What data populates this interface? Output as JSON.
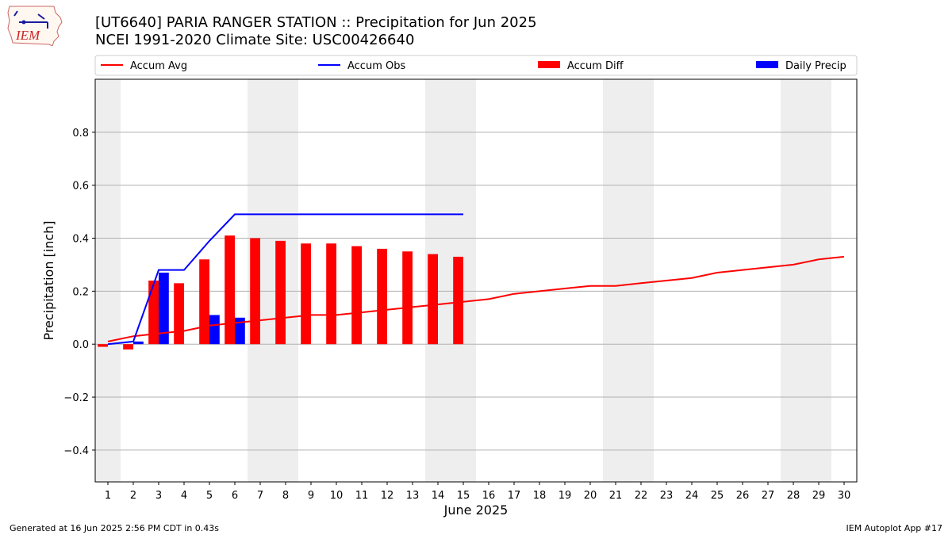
{
  "header": {
    "title_line1": "[UT6640] PARIA RANGER STATION :: Precipitation for Jun 2025",
    "title_line2": "NCEI 1991-2020 Climate Site: USC00426640",
    "logo_text": "IEM"
  },
  "footer": {
    "left": "Generated at 16 Jun 2025 2:56 PM CDT in 0.43s",
    "right": "IEM Autoplot App #17"
  },
  "colors": {
    "avg": "#ff0000",
    "obs": "#0000ff",
    "diff": "#ff0000",
    "daily": "#0000ff",
    "weekend_shade": "#eeeeee",
    "grid": "#b0b0b0"
  },
  "chart_data": {
    "type": "bar",
    "title": "[UT6640] PARIA RANGER STATION :: Precipitation for Jun 2025",
    "subtitle": "NCEI 1991-2020 Climate Site: USC00426640",
    "xlabel": "June 2025",
    "ylabel": "Precipitation [inch]",
    "ylim": [
      -0.52,
      1.0
    ],
    "xlim": [
      0.5,
      30.5
    ],
    "yticks": [
      -0.4,
      -0.2,
      0.0,
      0.2,
      0.4,
      0.6,
      0.8
    ],
    "ytick_labels": [
      "−0.4",
      "−0.2",
      "0.0",
      "0.2",
      "0.4",
      "0.6",
      "0.8"
    ],
    "days": [
      1,
      2,
      3,
      4,
      5,
      6,
      7,
      8,
      9,
      10,
      11,
      12,
      13,
      14,
      15,
      16,
      17,
      18,
      19,
      20,
      21,
      22,
      23,
      24,
      25,
      26,
      27,
      28,
      29,
      30
    ],
    "grid": true,
    "legend_position": "top",
    "weekend_shading": [
      [
        0.5,
        1.5
      ],
      [
        6.5,
        8.5
      ],
      [
        13.5,
        15.5
      ],
      [
        20.5,
        22.5
      ],
      [
        27.5,
        29.5
      ]
    ],
    "series": [
      {
        "name": "Accum Avg",
        "kind": "line",
        "color": "#ff0000",
        "x": [
          1,
          2,
          3,
          4,
          5,
          6,
          7,
          8,
          9,
          10,
          11,
          12,
          13,
          14,
          15,
          16,
          17,
          18,
          19,
          20,
          21,
          22,
          23,
          24,
          25,
          26,
          27,
          28,
          29,
          30
        ],
        "values": [
          0.01,
          0.03,
          0.04,
          0.05,
          0.07,
          0.08,
          0.09,
          0.1,
          0.11,
          0.11,
          0.12,
          0.13,
          0.14,
          0.15,
          0.16,
          0.17,
          0.19,
          0.2,
          0.21,
          0.22,
          0.22,
          0.23,
          0.24,
          0.25,
          0.27,
          0.28,
          0.29,
          0.3,
          0.32,
          0.33
        ]
      },
      {
        "name": "Accum Obs",
        "kind": "line",
        "color": "#0000ff",
        "x": [
          1,
          2,
          3,
          4,
          5,
          6,
          7,
          8,
          9,
          10,
          11,
          12,
          13,
          14,
          15
        ],
        "values": [
          0.0,
          0.01,
          0.28,
          0.28,
          0.39,
          0.49,
          0.49,
          0.49,
          0.49,
          0.49,
          0.49,
          0.49,
          0.49,
          0.49,
          0.49
        ]
      },
      {
        "name": "Accum Diff",
        "kind": "bar",
        "color": "#ff0000",
        "x": [
          1,
          2,
          3,
          4,
          5,
          6,
          7,
          8,
          9,
          10,
          11,
          12,
          13,
          14,
          15
        ],
        "values": [
          -0.01,
          -0.02,
          0.24,
          0.23,
          0.32,
          0.41,
          0.4,
          0.39,
          0.38,
          0.38,
          0.37,
          0.36,
          0.35,
          0.34,
          0.33
        ]
      },
      {
        "name": "Daily Precip",
        "kind": "bar",
        "color": "#0000ff",
        "x": [
          1,
          2,
          3,
          4,
          5,
          6,
          7,
          8,
          9,
          10,
          11,
          12,
          13,
          14,
          15
        ],
        "values": [
          0.0,
          0.01,
          0.27,
          0.0,
          0.11,
          0.1,
          0.0,
          0.0,
          0.0,
          0.0,
          0.0,
          0.0,
          0.0,
          0.0,
          0.0
        ]
      }
    ]
  }
}
